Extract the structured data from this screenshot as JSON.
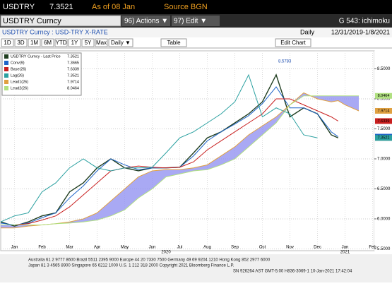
{
  "header": {
    "ticker": "USDTRY",
    "price": "7.3521",
    "as_of": "As of 08 Jan",
    "source": "Source BGN"
  },
  "toolbar": {
    "security": "USDTRY Curncy",
    "actions": "96) Actions ▼",
    "edit": "97) Edit ▼",
    "page": "G 543: ichimoku"
  },
  "info": {
    "description": "USDTRY Curncy : USD-TRY X-RATE",
    "frequency": "Daily",
    "range": "12/31/2019-1/8/2021"
  },
  "buttons": [
    "1D",
    "3D",
    "1M",
    "6M",
    "YTD",
    "1Y",
    "5Y",
    "Max"
  ],
  "period": "Daily ▼",
  "table": "Table",
  "edit_chart": "Edit Chart",
  "footer": [
    "Australia 61 2 9777 8600 Brazil 5511 2395 9000 Europe 44 20 7330 7500 Germany 49 69 9204 1210 Hong Kong 852 2977 6000",
    "Japan 81 3 4565 8900     Singapore 65 6212 1000     U.S. 1 212 318 2000     Copyright 2021 Bloomberg Finance L.P.",
    "SN 926264 AST  GMT-5:00 H836-3069-1 10-Jan-2021 17:42:04"
  ],
  "chart_data": {
    "type": "line",
    "x": [
      0,
      0.5,
      1,
      1.5,
      2,
      2.5,
      3,
      3.5,
      4,
      4.5,
      5,
      5.5,
      6,
      6.5,
      7,
      7.5,
      8,
      8.5,
      9,
      9.5,
      10,
      10.5,
      11,
      11.5,
      12,
      12.25,
      12.5,
      13
    ],
    "xlim": [
      0,
      13.5
    ],
    "xticks": [
      {
        "value": 0.5,
        "label": "Jan"
      },
      {
        "value": 1.5,
        "label": "Feb"
      },
      {
        "value": 2.5,
        "label": "Mar"
      },
      {
        "value": 3.5,
        "label": "Apr"
      },
      {
        "value": 4.5,
        "label": "May"
      },
      {
        "value": 5.5,
        "label": "Jun"
      },
      {
        "value": 6.5,
        "label": "Jul"
      },
      {
        "value": 7.5,
        "label": "Aug"
      },
      {
        "value": 8.5,
        "label": "Sep"
      },
      {
        "value": 9.5,
        "label": "Oct"
      },
      {
        "value": 10.5,
        "label": "Nov"
      },
      {
        "value": 11.5,
        "label": "Dec"
      },
      {
        "value": 12.5,
        "label": "Jan"
      },
      {
        "value": 13.5,
        "label": "Feb"
      }
    ],
    "year_labels": [
      {
        "value": 6,
        "label": "2020"
      },
      {
        "value": 12.5,
        "label": "2021"
      }
    ],
    "ylim": [
      5.47,
      8.8
    ],
    "yticks": [
      {
        "value": 8.5,
        "label": "8.5000"
      },
      {
        "value": 8,
        "label": "8.0000"
      },
      {
        "value": 7.5,
        "label": "7.5000"
      },
      {
        "value": 7,
        "label": "7.0000"
      },
      {
        "value": 6.5,
        "label": "6.5000"
      },
      {
        "value": 6,
        "label": "6.0000"
      },
      {
        "value": 5.5,
        "label": "5.5000"
      }
    ],
    "grid": true,
    "cloud_color": "#8c8cf0",
    "annotation": {
      "text": "8.5783",
      "x": 10,
      "y": 8.5783
    },
    "series": [
      {
        "name": "USDTRY Curncy - Last Price",
        "last": "7.3521",
        "color": "#1f3d1f",
        "values": [
          5.95,
          5.88,
          5.95,
          6.05,
          6.1,
          6.45,
          6.6,
          6.85,
          7.0,
          6.85,
          6.8,
          6.85,
          6.85,
          6.86,
          7.1,
          7.35,
          7.45,
          7.6,
          7.75,
          7.95,
          8.4,
          7.7,
          7.85,
          7.75,
          7.4,
          7.35,
          null,
          null
        ]
      },
      {
        "name": "Conv(9)",
        "last": "7.3665",
        "color": "#1e64c8",
        "values": [
          5.93,
          5.9,
          5.93,
          6.02,
          6.1,
          6.35,
          6.55,
          6.8,
          7.0,
          6.9,
          6.82,
          6.85,
          6.85,
          6.86,
          7.05,
          7.3,
          7.45,
          7.58,
          7.72,
          7.92,
          8.2,
          7.85,
          7.85,
          7.75,
          7.45,
          7.37,
          null,
          null
        ]
      },
      {
        "name": "Base(26)",
        "last": "7.6339",
        "color": "#c81e1e",
        "values": [
          5.9,
          5.9,
          5.92,
          5.98,
          6.05,
          6.2,
          6.4,
          6.6,
          6.8,
          6.85,
          6.88,
          6.86,
          6.85,
          6.86,
          6.95,
          7.15,
          7.3,
          7.45,
          7.6,
          7.75,
          8.0,
          8.0,
          7.9,
          7.8,
          7.7,
          7.63,
          null,
          null
        ]
      },
      {
        "name": "Lag(26)",
        "last": "7.3521",
        "color": "#2aa0a0",
        "values": [
          5.95,
          6.05,
          6.1,
          6.45,
          6.6,
          6.85,
          7.0,
          6.85,
          6.8,
          6.85,
          6.85,
          6.86,
          7.1,
          7.35,
          7.45,
          7.6,
          7.75,
          7.95,
          8.4,
          7.7,
          7.85,
          7.75,
          7.4,
          7.35,
          null,
          null,
          null,
          null
        ]
      },
      {
        "name": "Lead1(26)",
        "last": "7.9714",
        "color": "#e0a040",
        "values": [
          5.85,
          5.85,
          5.88,
          5.9,
          5.92,
          5.95,
          6.0,
          6.1,
          6.3,
          6.5,
          6.7,
          6.8,
          6.82,
          6.82,
          6.85,
          6.9,
          7.05,
          7.2,
          7.4,
          7.55,
          7.7,
          7.9,
          8.1,
          8.0,
          7.95,
          7.97,
          7.9,
          7.8
        ]
      },
      {
        "name": "Lead2(26)",
        "last": "8.0464",
        "color": "#b0e080",
        "values": [
          5.9,
          5.9,
          5.9,
          5.9,
          5.92,
          5.93,
          5.95,
          5.98,
          6.05,
          6.15,
          6.35,
          6.5,
          6.7,
          6.75,
          6.8,
          6.82,
          6.9,
          7.0,
          7.2,
          7.4,
          7.6,
          7.9,
          8.05,
          8.05,
          8.05,
          8.05,
          8.05,
          8.05
        ]
      }
    ]
  }
}
